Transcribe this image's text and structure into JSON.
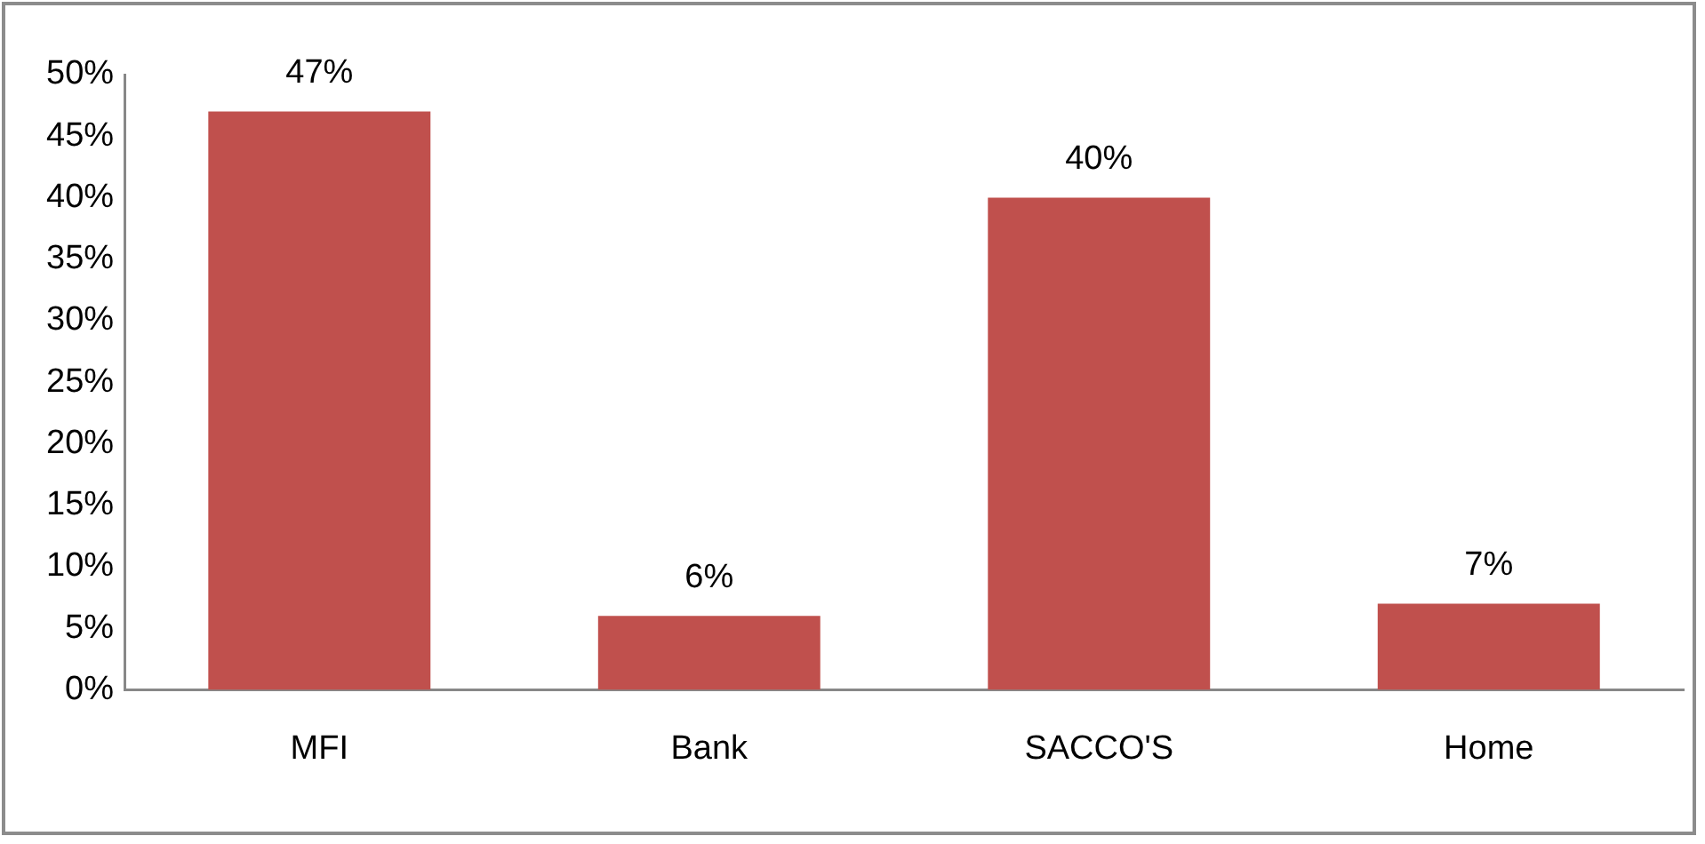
{
  "chart_data": {
    "type": "bar",
    "categories": [
      "MFI",
      "Bank",
      "SACCO'S",
      "Home"
    ],
    "values": [
      47,
      6,
      40,
      7
    ],
    "color": "#c0504d",
    "value_labels": [
      "47%",
      "6%",
      "40%",
      "7%"
    ],
    "ylim": [
      0,
      50
    ],
    "yticks": [
      {
        "value": 0,
        "label": "0%"
      },
      {
        "value": 5,
        "label": "5%"
      },
      {
        "value": 10,
        "label": "10%"
      },
      {
        "value": 15,
        "label": "15%"
      },
      {
        "value": 20,
        "label": "20%"
      },
      {
        "value": 25,
        "label": "25%"
      },
      {
        "value": 30,
        "label": "30%"
      },
      {
        "value": 35,
        "label": "35%"
      },
      {
        "value": 40,
        "label": "40%"
      },
      {
        "value": 45,
        "label": "45%"
      },
      {
        "value": 50,
        "label": "50%"
      }
    ],
    "grid": false,
    "legend": false
  }
}
